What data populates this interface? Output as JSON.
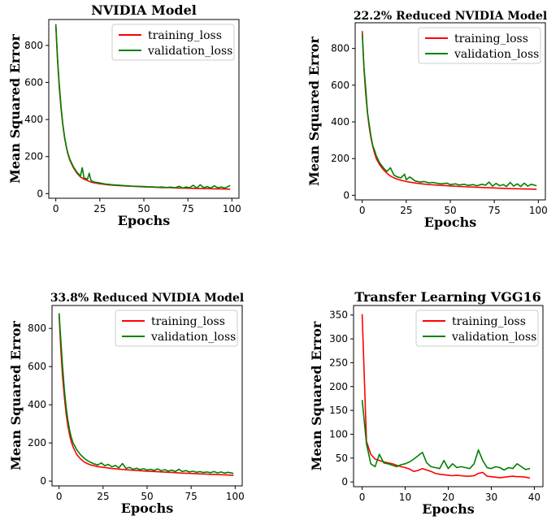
{
  "chart_data": [
    {
      "type": "line",
      "title": "NVIDIA Model",
      "xlabel": "Epochs",
      "ylabel": "Mean Squared Error",
      "xlim": [
        -4,
        104
      ],
      "ylim": [
        -25,
        940
      ],
      "xticks": [
        0,
        25,
        50,
        75,
        100
      ],
      "yticks": [
        0,
        200,
        400,
        600,
        800
      ],
      "legend_position": "top-right",
      "grid": false,
      "series": [
        {
          "name": "training_loss",
          "color": "#ff0000",
          "x": [
            0,
            1,
            2,
            3,
            4,
            5,
            6,
            7,
            8,
            10,
            12,
            14,
            16,
            18,
            20,
            22,
            25,
            30,
            35,
            40,
            45,
            50,
            55,
            60,
            65,
            70,
            75,
            80,
            85,
            90,
            95,
            99
          ],
          "y": [
            905,
            720,
            570,
            455,
            370,
            300,
            250,
            210,
            180,
            140,
            110,
            90,
            78,
            70,
            62,
            58,
            53,
            47,
            44,
            41,
            39,
            37,
            35,
            33,
            32,
            30,
            29,
            28,
            27,
            26,
            25,
            24
          ]
        },
        {
          "name": "validation_loss",
          "color": "#008000",
          "x": [
            0,
            1,
            2,
            3,
            4,
            5,
            6,
            7,
            8,
            10,
            12,
            14,
            15,
            16,
            18,
            19,
            20,
            22,
            25,
            28,
            30,
            33,
            35,
            38,
            40,
            43,
            45,
            48,
            50,
            53,
            55,
            58,
            60,
            63,
            65,
            68,
            70,
            72,
            74,
            76,
            78,
            80,
            82,
            84,
            86,
            88,
            90,
            92,
            94,
            96,
            99
          ],
          "y": [
            915,
            730,
            585,
            465,
            375,
            305,
            250,
            215,
            185,
            145,
            115,
            95,
            140,
            85,
            78,
            110,
            70,
            62,
            58,
            52,
            50,
            47,
            46,
            44,
            43,
            41,
            40,
            39,
            38,
            36,
            37,
            34,
            36,
            33,
            35,
            32,
            40,
            30,
            36,
            32,
            45,
            30,
            48,
            32,
            38,
            30,
            42,
            31,
            36,
            30,
            44
          ]
        }
      ]
    },
    {
      "type": "line",
      "title": "22.2% Reduced NVIDIA Model",
      "xlabel": "Epochs",
      "ylabel": "Mean Squared Error",
      "xlim": [
        -4,
        104
      ],
      "ylim": [
        -25,
        940
      ],
      "xticks": [
        0,
        25,
        50,
        75,
        100
      ],
      "yticks": [
        0,
        200,
        400,
        600,
        800
      ],
      "legend_position": "top-right",
      "grid": false,
      "series": [
        {
          "name": "training_loss",
          "color": "#ff0000",
          "x": [
            0,
            1,
            2,
            3,
            4,
            5,
            6,
            7,
            8,
            10,
            12,
            14,
            16,
            18,
            20,
            22,
            25,
            30,
            35,
            40,
            45,
            50,
            55,
            60,
            65,
            70,
            75,
            80,
            85,
            90,
            95,
            99
          ],
          "y": [
            895,
            690,
            550,
            445,
            370,
            310,
            265,
            230,
            200,
            165,
            140,
            120,
            105,
            95,
            88,
            82,
            75,
            67,
            61,
            57,
            54,
            51,
            48,
            46,
            44,
            42,
            40,
            38,
            36,
            35,
            34,
            33
          ]
        },
        {
          "name": "validation_loss",
          "color": "#008000",
          "x": [
            0,
            1,
            2,
            3,
            4,
            5,
            6,
            7,
            8,
            10,
            12,
            14,
            16,
            18,
            20,
            22,
            24,
            25,
            27,
            30,
            33,
            35,
            38,
            40,
            43,
            45,
            48,
            50,
            53,
            55,
            58,
            60,
            63,
            65,
            68,
            70,
            72,
            74,
            76,
            78,
            80,
            82,
            84,
            86,
            88,
            90,
            92,
            94,
            96,
            99
          ],
          "y": [
            880,
            700,
            580,
            450,
            385,
            320,
            270,
            245,
            215,
            175,
            150,
            130,
            150,
            110,
            100,
            95,
            115,
            85,
            100,
            78,
            72,
            75,
            68,
            70,
            65,
            62,
            66,
            58,
            62,
            56,
            60,
            54,
            58,
            52,
            60,
            55,
            72,
            50,
            65,
            52,
            58,
            48,
            70,
            50,
            62,
            48,
            66,
            50,
            60,
            52
          ]
        }
      ]
    },
    {
      "type": "line",
      "title": "33.8% Reduced NVIDIA Model",
      "xlabel": "Epochs",
      "ylabel": "Mean Squared Error",
      "xlim": [
        -4,
        104
      ],
      "ylim": [
        -25,
        920
      ],
      "xticks": [
        0,
        25,
        50,
        75,
        100
      ],
      "yticks": [
        0,
        200,
        400,
        600,
        800
      ],
      "legend_position": "top-right",
      "grid": false,
      "series": [
        {
          "name": "training_loss",
          "color": "#ff0000",
          "x": [
            0,
            1,
            2,
            3,
            4,
            5,
            6,
            7,
            8,
            10,
            12,
            14,
            16,
            18,
            20,
            22,
            25,
            30,
            35,
            40,
            45,
            50,
            55,
            60,
            65,
            70,
            75,
            80,
            85,
            90,
            95,
            99
          ],
          "y": [
            875,
            690,
            545,
            440,
            355,
            290,
            240,
            205,
            178,
            140,
            118,
            102,
            92,
            85,
            80,
            76,
            72,
            66,
            62,
            58,
            55,
            52,
            50,
            47,
            45,
            42,
            40,
            38,
            36,
            34,
            32,
            30
          ]
        },
        {
          "name": "validation_loss",
          "color": "#008000",
          "x": [
            0,
            1,
            2,
            3,
            4,
            5,
            6,
            7,
            8,
            10,
            12,
            14,
            16,
            18,
            20,
            22,
            24,
            26,
            28,
            30,
            32,
            34,
            36,
            38,
            40,
            42,
            44,
            46,
            48,
            50,
            52,
            54,
            56,
            58,
            60,
            62,
            64,
            66,
            68,
            70,
            72,
            74,
            76,
            78,
            80,
            82,
            84,
            86,
            88,
            90,
            92,
            94,
            96,
            99
          ],
          "y": [
            880,
            740,
            600,
            480,
            390,
            320,
            265,
            228,
            200,
            165,
            140,
            122,
            108,
            98,
            90,
            85,
            95,
            80,
            88,
            75,
            82,
            70,
            92,
            66,
            72,
            62,
            68,
            60,
            65,
            58,
            62,
            56,
            64,
            54,
            60,
            52,
            58,
            50,
            62,
            50,
            55,
            48,
            52,
            46,
            50,
            45,
            48,
            44,
            50,
            43,
            48,
            42,
            46,
            40
          ]
        }
      ]
    },
    {
      "type": "line",
      "title": "Transfer Learning VGG16",
      "xlabel": "Epochs",
      "ylabel": "Mean Squared Error",
      "xlim": [
        -2,
        42
      ],
      "ylim": [
        -10,
        370
      ],
      "xticks": [
        0,
        10,
        20,
        30,
        40
      ],
      "yticks": [
        0,
        50,
        100,
        150,
        200,
        250,
        300,
        350
      ],
      "legend_position": "top-right",
      "grid": false,
      "series": [
        {
          "name": "training_loss",
          "color": "#ff0000",
          "x": [
            0,
            1,
            2,
            3,
            4,
            5,
            6,
            7,
            8,
            9,
            10,
            11,
            12,
            13,
            14,
            15,
            16,
            17,
            18,
            19,
            20,
            21,
            22,
            23,
            24,
            25,
            26,
            27,
            28,
            29,
            30,
            31,
            32,
            33,
            34,
            35,
            36,
            37,
            38,
            39
          ],
          "y": [
            352,
            85,
            58,
            48,
            45,
            42,
            40,
            38,
            35,
            32,
            30,
            27,
            22,
            24,
            28,
            25,
            22,
            18,
            16,
            15,
            14,
            13,
            14,
            13,
            12,
            12,
            13,
            18,
            20,
            12,
            11,
            10,
            9,
            10,
            11,
            12,
            11,
            11,
            10,
            8
          ]
        },
        {
          "name": "validation_loss",
          "color": "#008000",
          "x": [
            0,
            1,
            2,
            3,
            4,
            5,
            6,
            7,
            8,
            9,
            10,
            11,
            12,
            13,
            14,
            15,
            16,
            17,
            18,
            19,
            20,
            21,
            22,
            23,
            24,
            25,
            26,
            27,
            28,
            29,
            30,
            31,
            32,
            33,
            34,
            35,
            36,
            37,
            38,
            39
          ],
          "y": [
            172,
            80,
            38,
            32,
            58,
            40,
            38,
            35,
            32,
            36,
            38,
            42,
            48,
            55,
            62,
            40,
            32,
            30,
            28,
            45,
            28,
            38,
            30,
            32,
            30,
            28,
            38,
            67,
            45,
            30,
            28,
            32,
            30,
            25,
            30,
            28,
            38,
            32,
            26,
            28
          ]
        }
      ]
    }
  ]
}
